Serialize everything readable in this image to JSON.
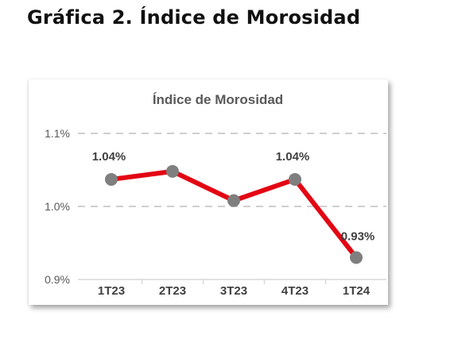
{
  "page": {
    "heading": "Gráfica 2. Índice de Morosidad"
  },
  "colors": {
    "line": "#e30613",
    "marker": "#7f7f7f",
    "grid": "#bfbfbf",
    "axis": "#d9d9d9"
  },
  "chart_data": {
    "type": "line",
    "title": "Índice de Morosidad",
    "categories": [
      "1T23",
      "2T23",
      "3T23",
      "4T23",
      "1T24"
    ],
    "series": [
      {
        "values": [
          1.037,
          1.048,
          1.008,
          1.037,
          0.93
        ]
      }
    ],
    "data_labels": [
      {
        "index": 0,
        "text": "1.04%"
      },
      {
        "index": 3,
        "text": "1.04%"
      },
      {
        "index": 4,
        "text": "0.93%"
      }
    ],
    "yticks": [
      {
        "value": 1.1,
        "label": "1.1%"
      },
      {
        "value": 1.0,
        "label": "1.0%"
      },
      {
        "value": 0.9,
        "label": "0.9%"
      }
    ],
    "ylim": [
      0.9,
      1.1
    ],
    "grid": true,
    "legend": "none"
  }
}
